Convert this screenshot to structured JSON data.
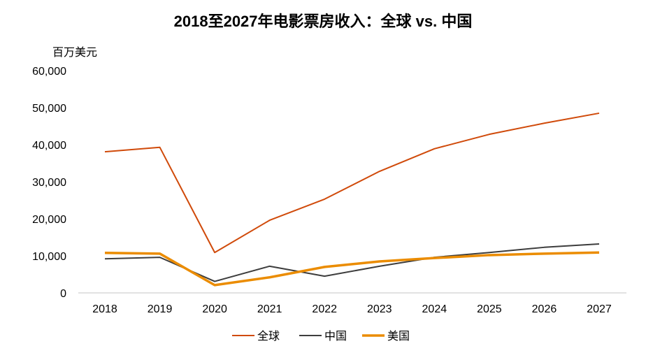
{
  "chart_data": {
    "type": "line",
    "title": "2018至2027年电影票房收入：全球 vs. 中国",
    "ylabel": "百万美元",
    "xlabel": "",
    "ylim": [
      0,
      60000
    ],
    "yticks": [
      "0",
      "10,000",
      "20,000",
      "30,000",
      "40,000",
      "50,000",
      "60,000"
    ],
    "ytick_values": [
      0,
      10000,
      20000,
      30000,
      40000,
      50000,
      60000
    ],
    "categories": [
      "2018",
      "2019",
      "2020",
      "2021",
      "2022",
      "2023",
      "2024",
      "2025",
      "2026",
      "2027"
    ],
    "grid": false,
    "legend_position": "bottom",
    "series": [
      {
        "name": "全球",
        "color": "#d04a0a",
        "values": [
          38100,
          39300,
          10900,
          19600,
          25300,
          32800,
          38900,
          42800,
          45800,
          48500
        ]
      },
      {
        "name": "中国",
        "color": "#3d3d3d",
        "values": [
          9200,
          9600,
          3100,
          7200,
          4500,
          7200,
          9600,
          10900,
          12300,
          13200
        ]
      },
      {
        "name": "美国",
        "color": "#eb8c00",
        "values": [
          10800,
          10600,
          2100,
          4200,
          7000,
          8500,
          9400,
          10200,
          10600,
          10900
        ]
      }
    ]
  }
}
